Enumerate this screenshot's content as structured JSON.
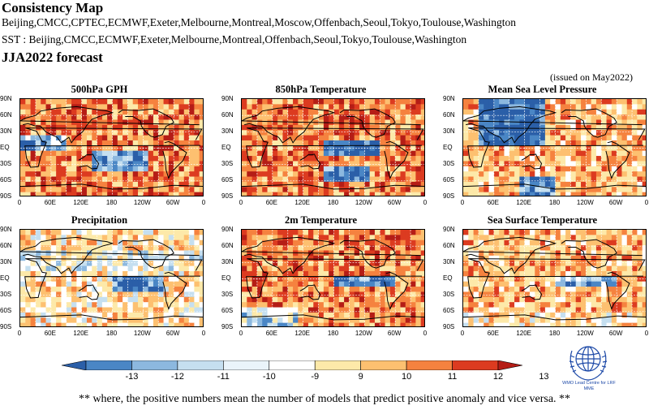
{
  "header": {
    "title": "Consistency Map",
    "models_line": "Beijing,CMCC,CPTEC,ECMWF,Exeter,Melbourne,Montreal,Moscow,Offenbach,Seoul,Tokyo,Toulouse,Washington",
    "sst_line": "SST : Beijing,CMCC,ECMWF,Exeter,Melbourne,Montreal,Offenbach,Seoul,Tokyo,Toulouse,Washington",
    "forecast": "JJA2022 forecast",
    "issued": "(issued on May2022)"
  },
  "axes": {
    "lat_labels": [
      "90N",
      "60N",
      "30N",
      "EQ",
      "30S",
      "60S",
      "90S"
    ],
    "lon_labels": [
      "0",
      "60E",
      "120E",
      "180",
      "120W",
      "60W",
      "0"
    ]
  },
  "panels": [
    {
      "title": "500hPa GPH"
    },
    {
      "title": "850hPa Temperature"
    },
    {
      "title": "Mean Sea Level Pressure"
    },
    {
      "title": "Precipitation"
    },
    {
      "title": "2m Temperature"
    },
    {
      "title": "Sea Surface Temperature"
    }
  ],
  "colorbar": {
    "labels": [
      "-13",
      "-12",
      "-11",
      "-10",
      "-9",
      "9",
      "10",
      "11",
      "12",
      "13"
    ],
    "colors": [
      "#2b5fa8",
      "#4a86c5",
      "#8cb8df",
      "#c5dff0",
      "#eaf4fa",
      "#ffffff",
      "#fde9a9",
      "#fdc070",
      "#f5823f",
      "#dc3b20",
      "#b51d16"
    ]
  },
  "logo": {
    "caption": "WMO Lead Centre for LRF MME"
  },
  "footnote": "** where, the positive numbers mean the number of models that predict positive anomaly and vice versa. **"
}
